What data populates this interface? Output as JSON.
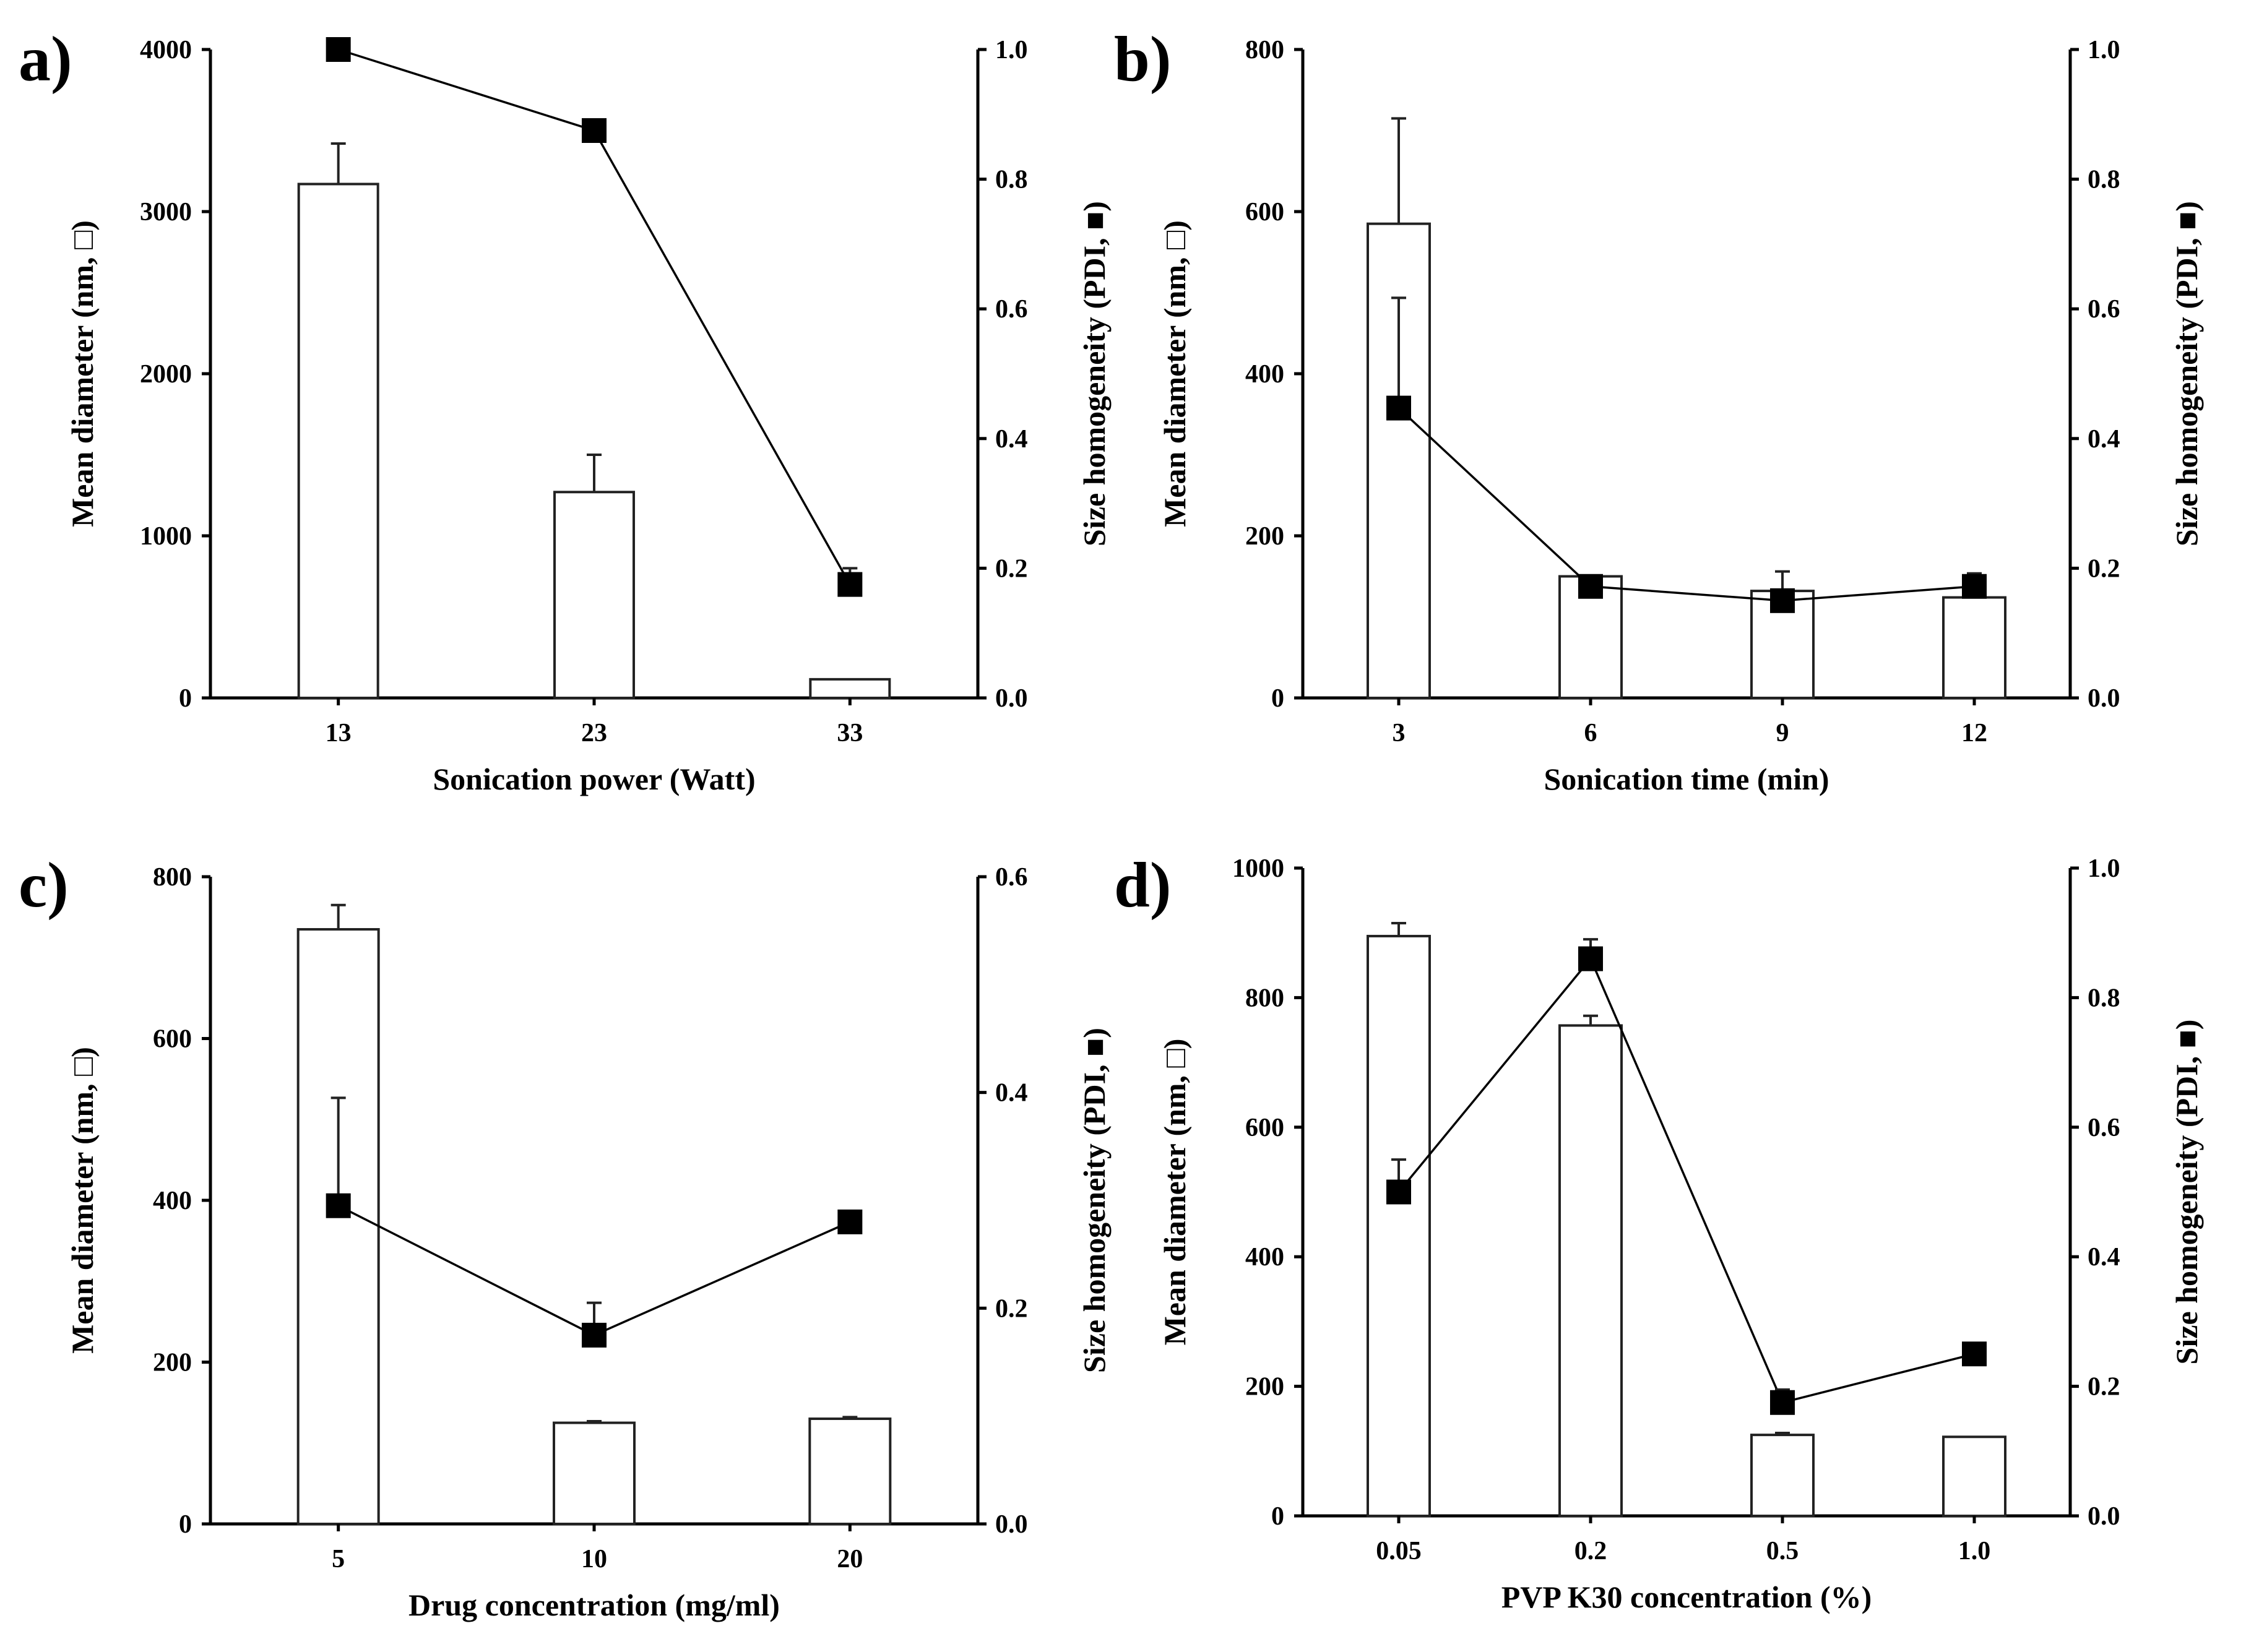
{
  "chart_data": [
    {
      "type": "bar",
      "panel_label": "a)",
      "title": "",
      "xlabel": "Sonication power (Watt)",
      "ylabel": "Mean diameter (nm, □)",
      "y2label": "Size homogeneity (PDI, ■)",
      "categories": [
        "13",
        "23",
        "33"
      ],
      "ylim": [
        0,
        4000
      ],
      "yticks": [
        "0",
        "1000",
        "2000",
        "3000",
        "4000"
      ],
      "y2lim": [
        0,
        1.0
      ],
      "y2ticks": [
        "0.0",
        "0.2",
        "0.4",
        "0.6",
        "0.8",
        "1.0"
      ],
      "series": [
        {
          "name": "Mean diameter",
          "kind": "bar",
          "values": [
            3170,
            1270,
            115
          ],
          "errors": [
            250,
            230,
            0
          ]
        },
        {
          "name": "PDI",
          "kind": "line",
          "values": [
            1.0,
            0.875,
            0.175
          ],
          "errors": [
            0,
            0,
            0.025
          ]
        }
      ]
    },
    {
      "type": "bar",
      "panel_label": "b)",
      "title": "",
      "xlabel": "Sonication time (min)",
      "ylabel": "Mean diameter (nm, □)",
      "y2label": "Size homogeneity (PDI, ■)",
      "categories": [
        "3",
        "6",
        "9",
        "12"
      ],
      "ylim": [
        0,
        800
      ],
      "yticks": [
        "0",
        "200",
        "400",
        "600",
        "800"
      ],
      "y2lim": [
        0,
        1.0
      ],
      "y2ticks": [
        "0.0",
        "0.2",
        "0.4",
        "0.6",
        "0.8",
        "1.0"
      ],
      "series": [
        {
          "name": "Mean diameter",
          "kind": "bar",
          "values": [
            585,
            150,
            132,
            124
          ],
          "errors": [
            130,
            0,
            0,
            0
          ]
        },
        {
          "name": "PDI",
          "kind": "line",
          "values": [
            0.447,
            0.172,
            0.15,
            0.172
          ],
          "errors": [
            0.17,
            0.015,
            0.045,
            0.02
          ]
        }
      ]
    },
    {
      "type": "bar",
      "panel_label": "c)",
      "title": "",
      "xlabel": "Drug concentration (mg/ml)",
      "ylabel": "Mean diameter (nm, □)",
      "y2label": "Size homogeneity (PDI, ■)",
      "categories": [
        "5",
        "10",
        "20"
      ],
      "ylim": [
        0,
        800
      ],
      "yticks": [
        "0",
        "200",
        "400",
        "600",
        "800"
      ],
      "y2lim": [
        0,
        0.6
      ],
      "y2ticks": [
        "0.0",
        "0.2",
        "0.4",
        "0.6"
      ],
      "series": [
        {
          "name": "Mean diameter",
          "kind": "bar",
          "values": [
            735,
            125,
            130
          ],
          "errors": [
            30,
            2,
            2
          ]
        },
        {
          "name": "PDI",
          "kind": "line",
          "values": [
            0.295,
            0.175,
            0.28
          ],
          "errors": [
            0.1,
            0.03,
            0
          ]
        }
      ]
    },
    {
      "type": "bar",
      "panel_label": "d)",
      "title": "",
      "xlabel": "PVP K30 concentration (%)",
      "ylabel": "Mean diameter (nm, □)",
      "y2label": "Size homogeneity (PDI, ■)",
      "categories": [
        "0.05",
        "0.2",
        "0.5",
        "1.0"
      ],
      "ylim": [
        0,
        1000
      ],
      "yticks": [
        "0",
        "200",
        "400",
        "600",
        "800",
        "1000"
      ],
      "y2lim": [
        0,
        1.0
      ],
      "y2ticks": [
        "0.0",
        "0.2",
        "0.4",
        "0.6",
        "0.8",
        "1.0"
      ],
      "series": [
        {
          "name": "Mean diameter",
          "kind": "bar",
          "values": [
            895,
            757,
            125,
            122
          ],
          "errors": [
            20,
            15,
            3,
            0
          ]
        },
        {
          "name": "PDI",
          "kind": "line",
          "values": [
            0.5,
            0.86,
            0.175,
            0.25
          ],
          "errors": [
            0.05,
            0.03,
            0.02,
            0
          ]
        }
      ]
    }
  ]
}
